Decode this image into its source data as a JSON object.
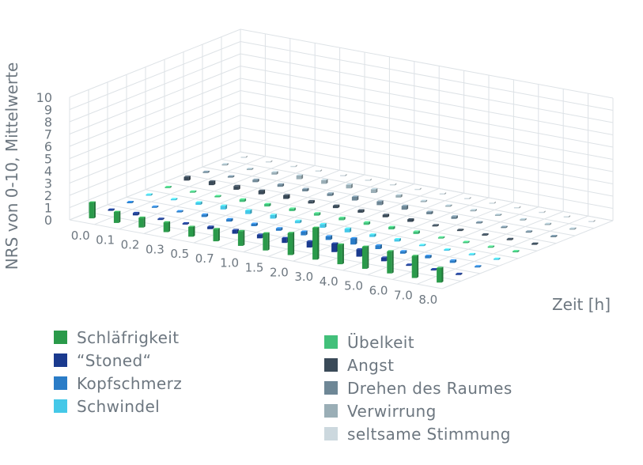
{
  "chart_data": {
    "type": "bar3d",
    "ylabel": "NRS von 0-10, Mittelwerte",
    "xlabel": "Zeit [h]",
    "ylim": [
      0,
      10
    ],
    "yticks": [
      "0",
      "1",
      "2",
      "3",
      "4",
      "5",
      "6",
      "7",
      "8",
      "9",
      "10"
    ],
    "categories": [
      "0.0",
      "0.1",
      "0.2",
      "0.3",
      "0.5",
      "0.7",
      "1.0",
      "1.5",
      "2.0",
      "3.0",
      "4.0",
      "5.0",
      "6.0",
      "7.0",
      "8.0"
    ],
    "grid": true,
    "legend_position": "bottom",
    "series": [
      {
        "name": "Schläfrigkeit",
        "color": "#2a9a4a",
        "values": [
          1.3,
          0.9,
          0.8,
          0.8,
          0.8,
          1.0,
          1.2,
          1.4,
          1.8,
          2.6,
          1.6,
          1.8,
          1.8,
          1.8,
          1.2
        ]
      },
      {
        "name": "“Stoned“",
        "color": "#1a3a8e",
        "values": [
          0.1,
          0.2,
          0.1,
          0.1,
          0.2,
          0.3,
          0.3,
          0.4,
          0.5,
          0.7,
          0.6,
          0.3,
          0.1,
          0.1,
          0.1
        ]
      },
      {
        "name": "Kopfschmerz",
        "color": "#2a7cc7",
        "values": [
          0.1,
          0.1,
          0.1,
          0.2,
          0.2,
          0.2,
          0.2,
          0.3,
          0.3,
          0.5,
          0.3,
          0.2,
          0.2,
          0.2,
          0.1
        ]
      },
      {
        "name": "Schwindel",
        "color": "#45c8e8",
        "values": [
          0.1,
          0.1,
          0.2,
          0.3,
          0.3,
          0.3,
          0.2,
          0.3,
          0.3,
          0.2,
          0.2,
          0.1,
          0.1,
          0.1,
          0.1
        ]
      },
      {
        "name": "Übelkeit",
        "color": "#42c07a",
        "values": [
          0.1,
          0.1,
          0.1,
          0.2,
          0.2,
          0.2,
          0.2,
          0.2,
          0.2,
          0.2,
          0.2,
          0.1,
          0.1,
          0.1,
          0.1
        ]
      },
      {
        "name": "Angst",
        "color": "#3a4a58",
        "values": [
          0.3,
          0.3,
          0.3,
          0.3,
          0.3,
          0.2,
          0.2,
          0.2,
          0.2,
          0.2,
          0.1,
          0.1,
          0.1,
          0.1,
          0.1
        ]
      },
      {
        "name": "Drehen des Raumes",
        "color": "#6e8796",
        "values": [
          0.1,
          0.1,
          0.2,
          0.2,
          0.2,
          0.2,
          0.3,
          0.3,
          0.3,
          0.2,
          0.2,
          0.1,
          0.1,
          0.1,
          0.1
        ]
      },
      {
        "name": "Verwirrung",
        "color": "#9aaeb6",
        "values": [
          0.1,
          0.1,
          0.2,
          0.3,
          0.3,
          0.3,
          0.3,
          0.2,
          0.1,
          0.1,
          0.1,
          0.1,
          0.1,
          0.1,
          0.1
        ]
      },
      {
        "name": "seltsame Stimmung",
        "color": "#ccd8de",
        "values": [
          0.1,
          0.1,
          0.1,
          0.1,
          0.1,
          0.1,
          0.1,
          0.1,
          0.1,
          0.1,
          0.1,
          0.1,
          0.1,
          0.1,
          0.1
        ]
      }
    ]
  }
}
